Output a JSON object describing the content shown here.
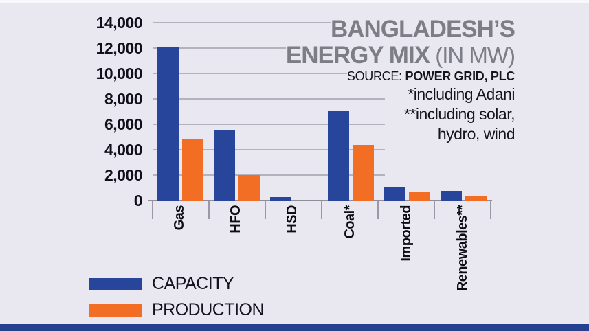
{
  "page": {
    "background": "#e9e8f1",
    "top_strip_color": "#f8f8fc",
    "bottom_bar_color": "#24408f"
  },
  "title": {
    "line1": "BANGLADESH’S",
    "line2_bold": "ENERGY MIX",
    "line2_light": " (IN MW)",
    "source_label": "SOURCE: ",
    "source_value": "POWER GRID, PLC",
    "note1": "*including Adani",
    "note2": "**including solar,",
    "note3": "hydro, wind"
  },
  "legend": {
    "items": [
      {
        "label": "CAPACITY",
        "color": "#27459a"
      },
      {
        "label": "PRODUCTION",
        "color": "#f26e24"
      }
    ]
  },
  "chart_data": {
    "type": "bar",
    "title": "BANGLADESH'S ENERGY MIX (IN MW)",
    "source": "POWER GRID, PLC",
    "categories": [
      "Gas",
      "HFO",
      "HSD",
      "Coal*",
      "Imported",
      "Renewables**"
    ],
    "series": [
      {
        "name": "CAPACITY",
        "color": "#27459a",
        "values": [
          12100,
          5500,
          250,
          7100,
          1000,
          750
        ]
      },
      {
        "name": "PRODUCTION",
        "color": "#f26e24",
        "values": [
          4800,
          2000,
          0,
          4400,
          700,
          300
        ]
      }
    ],
    "ylabel": "MW",
    "ylim": [
      0,
      14000
    ],
    "ytick_step": 2000,
    "ytick_labels": [
      "0",
      "2,000",
      "4,000",
      "6,000",
      "8,000",
      "10,000",
      "12,000",
      "14,000"
    ],
    "grid": true,
    "legend_position": "bottom-left",
    "notes": [
      "*including Adani",
      "**including solar, hydro, wind"
    ]
  }
}
